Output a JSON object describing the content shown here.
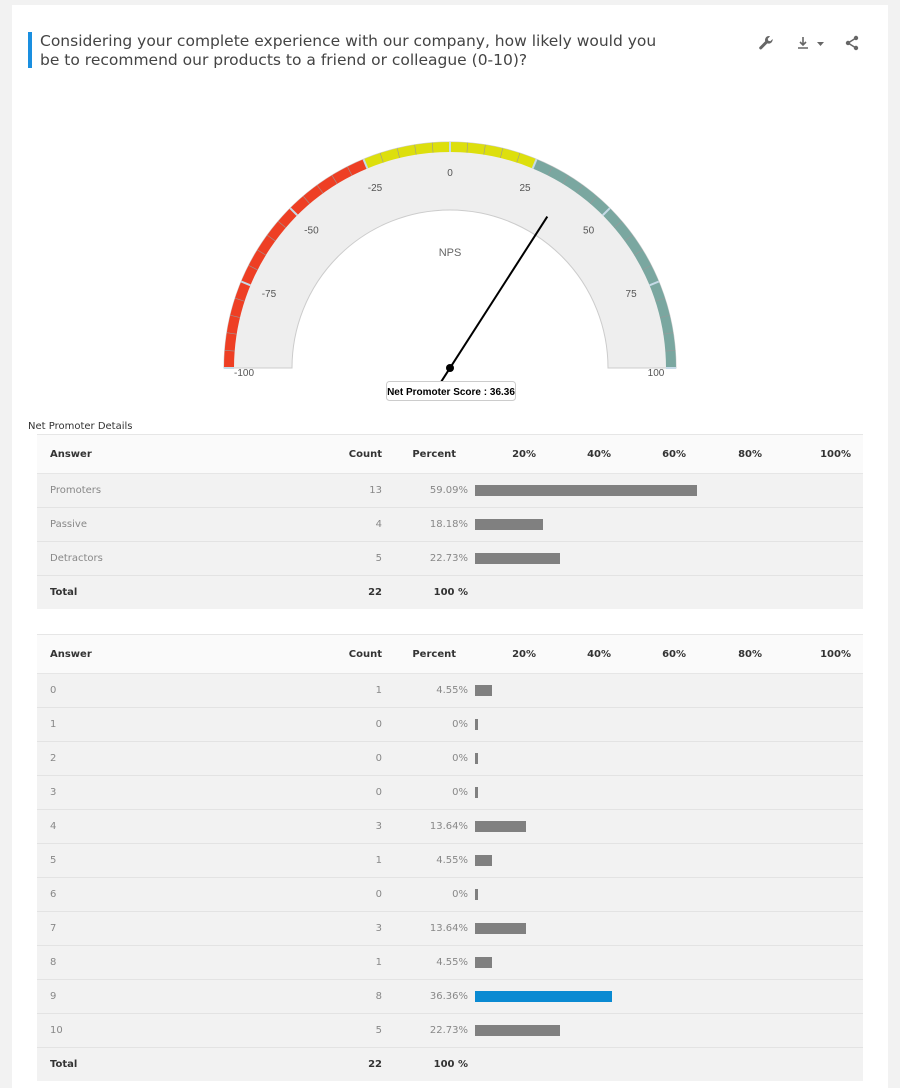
{
  "question": {
    "title": "Considering your complete experience with our company, how likely would you be to recommend our products to a friend or colleague (0-10)?",
    "accent_color": "#1a8fe0"
  },
  "toolbar": {
    "icons": [
      "wrench-icon",
      "download-icon",
      "share-icon"
    ],
    "wrench": "🔧",
    "download": "⤓",
    "caret": "▾",
    "share": "<"
  },
  "gauge": {
    "label": "NPS",
    "min": -100,
    "max": 100,
    "value": 36.36,
    "tick_labels": [
      "-100",
      "-75",
      "-50",
      "-25",
      "0",
      "25",
      "50",
      "75",
      "100"
    ],
    "bands": [
      {
        "from": -100,
        "to": -25,
        "color": "#ee3f24"
      },
      {
        "from": -25,
        "to": 25,
        "color": "#dddf0d"
      },
      {
        "from": 25,
        "to": 100,
        "color": "#7aa7a0"
      }
    ],
    "tooltip": "Net Promoter Score : 36.36"
  },
  "details_label": "Net Promoter Details",
  "headers": {
    "answer": "Answer",
    "count": "Count",
    "percent": "Percent",
    "scale": [
      "20%",
      "40%",
      "60%",
      "80%",
      "100%"
    ]
  },
  "table1": {
    "rows": [
      {
        "answer": "Promoters",
        "count": "13",
        "percent": "59.09%",
        "value": 59.09
      },
      {
        "answer": "Passive",
        "count": "4",
        "percent": "18.18%",
        "value": 18.18
      },
      {
        "answer": "Detractors",
        "count": "5",
        "percent": "22.73%",
        "value": 22.73
      }
    ],
    "total": {
      "answer": "Total",
      "count": "22",
      "percent": "100 %"
    }
  },
  "table2": {
    "rows": [
      {
        "answer": "0",
        "count": "1",
        "percent": "4.55%",
        "value": 4.55
      },
      {
        "answer": "1",
        "count": "0",
        "percent": "0%",
        "value": 0
      },
      {
        "answer": "2",
        "count": "0",
        "percent": "0%",
        "value": 0
      },
      {
        "answer": "3",
        "count": "0",
        "percent": "0%",
        "value": 0
      },
      {
        "answer": "4",
        "count": "3",
        "percent": "13.64%",
        "value": 13.64
      },
      {
        "answer": "5",
        "count": "1",
        "percent": "4.55%",
        "value": 4.55
      },
      {
        "answer": "6",
        "count": "0",
        "percent": "0%",
        "value": 0
      },
      {
        "answer": "7",
        "count": "3",
        "percent": "13.64%",
        "value": 13.64
      },
      {
        "answer": "8",
        "count": "1",
        "percent": "4.55%",
        "value": 4.55
      },
      {
        "answer": "9",
        "count": "8",
        "percent": "36.36%",
        "value": 36.36,
        "highlight": true
      },
      {
        "answer": "10",
        "count": "5",
        "percent": "22.73%",
        "value": 22.73
      }
    ],
    "total": {
      "answer": "Total",
      "count": "22",
      "percent": "100 %"
    }
  },
  "colors": {
    "bar": "#808080",
    "bar_highlight": "#0a8ad2"
  }
}
